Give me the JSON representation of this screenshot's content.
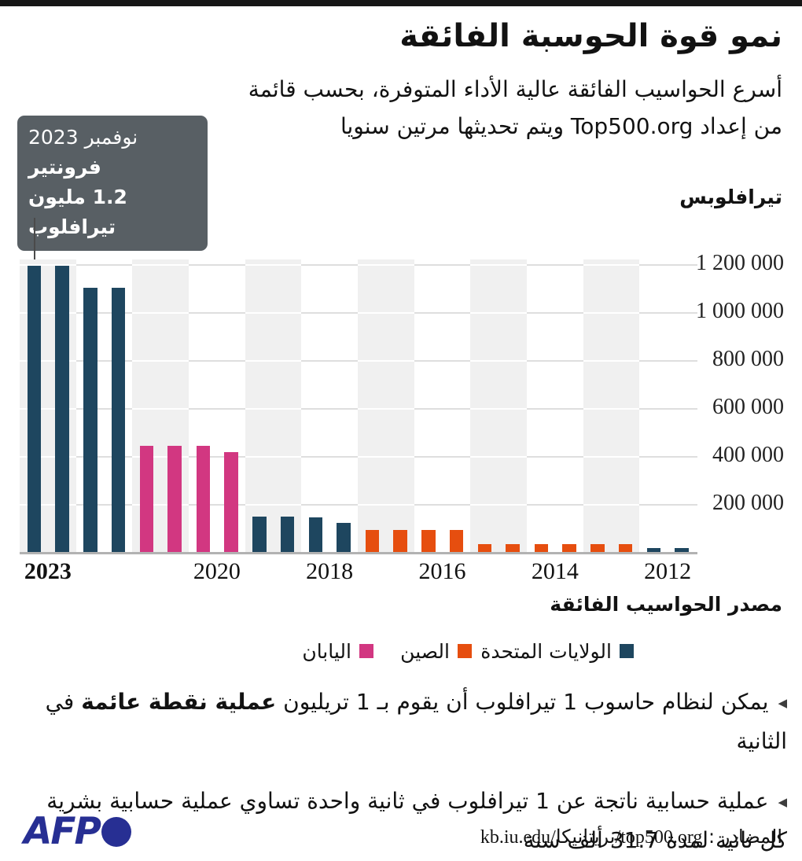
{
  "page": {
    "top_bar_color": "#161616",
    "background": "#ffffff"
  },
  "header": {
    "title": "نمو قوة الحوسبة الفائقة",
    "subtitle_line1": "أسرع الحواسيب الفائقة عالية الأداء المتوفرة، بحسب قائمة",
    "subtitle_line2": "من إعداد Top500.org ويتم تحديثها مرتين سنويا"
  },
  "callout": {
    "bg": "#585f64",
    "date_line": "نوفمبر 2023",
    "name_line": "فرونتير",
    "value_line": "1.2 مليون تيرافلوب"
  },
  "chart_data": {
    "type": "bar",
    "title": "نمو قوة الحوسبة الفائقة",
    "xlabel": "",
    "ylabel": "تيرافلوبس",
    "ylim": [
      0,
      1230000
    ],
    "grid": true,
    "legend_position": "below",
    "ytick_values": [
      200000,
      400000,
      600000,
      800000,
      1000000,
      1200000
    ],
    "ytick_labels": [
      "200 000",
      "400 000",
      "600 000",
      "800 000",
      "1 000 000",
      "1 200 000"
    ],
    "xticks": [
      {
        "label": "2023",
        "band": 0,
        "bold": true
      },
      {
        "label": "2020",
        "band": 3,
        "bold": false
      },
      {
        "label": "2018",
        "band": 5,
        "bold": false
      },
      {
        "label": "2016",
        "band": 7,
        "bold": false
      },
      {
        "label": "2014",
        "band": 9,
        "bold": false
      },
      {
        "label": "2012",
        "band": 11,
        "bold": false
      }
    ],
    "year_bands_newest_first": [
      "2023",
      "2022",
      "2021",
      "2020",
      "2019",
      "2018",
      "2017",
      "2016",
      "2015",
      "2014",
      "2013",
      "2012"
    ],
    "shaded_band_color": "#f0f0f0",
    "colors": {
      "us": "#1e465f",
      "china": "#e64e0f",
      "japan": "#d23781"
    },
    "legend_title": "مصدر الحواسيب الفائقة",
    "legend": [
      {
        "label": "الولايات المتحدة",
        "country": "us"
      },
      {
        "label": "الصين",
        "country": "china"
      },
      {
        "label": "اليابان",
        "country": "japan"
      }
    ],
    "bars": [
      {
        "year": 2023,
        "list": "Nov",
        "value": 1194000,
        "country": "us"
      },
      {
        "year": 2023,
        "list": "Jun",
        "value": 1194000,
        "country": "us"
      },
      {
        "year": 2022,
        "list": "Nov",
        "value": 1102000,
        "country": "us"
      },
      {
        "year": 2022,
        "list": "Jun",
        "value": 1102000,
        "country": "us"
      },
      {
        "year": 2021,
        "list": "Nov",
        "value": 442000,
        "country": "japan"
      },
      {
        "year": 2021,
        "list": "Jun",
        "value": 442000,
        "country": "japan"
      },
      {
        "year": 2020,
        "list": "Nov",
        "value": 442000,
        "country": "japan"
      },
      {
        "year": 2020,
        "list": "Jun",
        "value": 415500,
        "country": "japan"
      },
      {
        "year": 2019,
        "list": "Nov",
        "value": 148600,
        "country": "us"
      },
      {
        "year": 2019,
        "list": "Jun",
        "value": 148600,
        "country": "us"
      },
      {
        "year": 2018,
        "list": "Nov",
        "value": 143500,
        "country": "us"
      },
      {
        "year": 2018,
        "list": "Jun",
        "value": 122300,
        "country": "us"
      },
      {
        "year": 2017,
        "list": "Nov",
        "value": 93000,
        "country": "china"
      },
      {
        "year": 2017,
        "list": "Jun",
        "value": 93000,
        "country": "china"
      },
      {
        "year": 2016,
        "list": "Nov",
        "value": 93000,
        "country": "china"
      },
      {
        "year": 2016,
        "list": "Jun",
        "value": 93000,
        "country": "china"
      },
      {
        "year": 2015,
        "list": "Nov",
        "value": 34000,
        "country": "china"
      },
      {
        "year": 2015,
        "list": "Jun",
        "value": 34000,
        "country": "china"
      },
      {
        "year": 2014,
        "list": "Nov",
        "value": 34000,
        "country": "china"
      },
      {
        "year": 2014,
        "list": "Jun",
        "value": 34000,
        "country": "china"
      },
      {
        "year": 2013,
        "list": "Nov",
        "value": 34000,
        "country": "china"
      },
      {
        "year": 2013,
        "list": "Jun",
        "value": 34000,
        "country": "china"
      },
      {
        "year": 2012,
        "list": "Nov",
        "value": 17600,
        "country": "us"
      },
      {
        "year": 2012,
        "list": "Jun",
        "value": 16300,
        "country": "us"
      }
    ]
  },
  "notes": [
    {
      "pre": "يمكن لنظام حاسوب 1 تيرافلوب أن يقوم بـ 1 تريليون ",
      "bold": "عملية نقطة عائمة",
      "post": " في الثانية",
      "line2": ""
    },
    {
      "pre": "عملية حسابية ناتجة عن 1 تيرافلوب في ثانية واحدة تساوي عملية حسابية بشرية",
      "bold": "",
      "post": "",
      "line2": "كل ثانية لمدة 31.7 ألف سنة"
    }
  ],
  "footer": {
    "logo_text": "AFP",
    "logo_color": "#272f93",
    "source_label": "المصادر : ",
    "source_url": "kb.iu.edu/بريتانيكا/top500.org"
  }
}
